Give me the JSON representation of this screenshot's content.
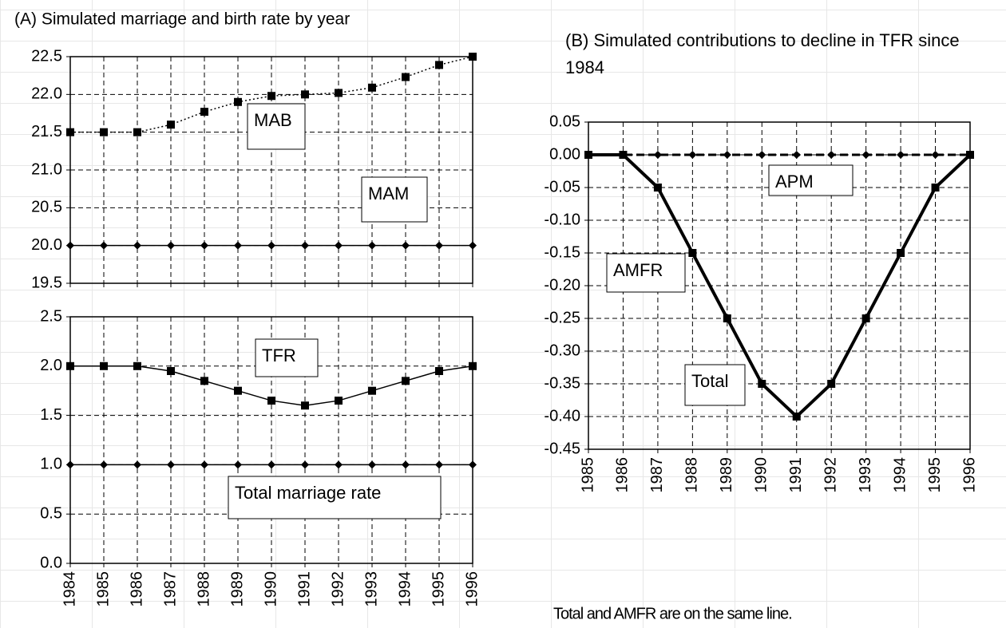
{
  "chart_data": [
    {
      "type": "line",
      "title": "(A) Simulated marriage and birth rate by year",
      "categories": [
        null,
        null,
        null,
        null,
        null,
        null,
        null,
        null,
        null,
        null,
        null,
        null,
        null
      ],
      "series": [
        {
          "name": "MAB",
          "color": "#000000",
          "line_style": "dotted",
          "marker": "square",
          "values": [
            21.5,
            21.5,
            21.5,
            21.6,
            21.77,
            21.9,
            21.98,
            22.0,
            22.02,
            22.09,
            22.23,
            22.39,
            22.5
          ]
        },
        {
          "name": "MAM",
          "color": "#000000",
          "line_style": "solid",
          "marker": "diamond",
          "values": [
            20,
            20,
            20,
            20,
            20,
            20,
            20,
            20,
            20,
            20,
            20,
            20,
            20
          ]
        }
      ],
      "ylim": [
        19.5,
        22.5
      ],
      "yticks": [
        19.5,
        {
          "value": 20,
          "label": "20.0"
        },
        20.5,
        {
          "value": 21,
          "label": "21.0"
        },
        21.5,
        {
          "value": 22,
          "label": "22.0"
        },
        22.5
      ],
      "grid": true
    },
    {
      "type": "line",
      "categories": [
        "1984",
        "1985",
        "1986",
        "1987",
        "1988",
        "1989",
        "1990",
        "1991",
        "1992",
        "1993",
        "1994",
        "1995",
        "1996"
      ],
      "series": [
        {
          "name": "TFR",
          "color": "#000000",
          "line_style": "solid",
          "marker": "square",
          "values": [
            2.0,
            2.0,
            2.0,
            1.95,
            1.85,
            1.75,
            1.65,
            1.6,
            1.65,
            1.75,
            1.85,
            1.95,
            2.0
          ]
        },
        {
          "name": "Total marriage rate",
          "color": "#000000",
          "line_style": "solid",
          "marker": "diamond",
          "values": [
            1,
            1,
            1,
            1,
            1,
            1,
            1,
            1,
            1,
            1,
            1,
            1,
            1
          ]
        }
      ],
      "ylim": [
        0,
        2.5
      ],
      "yticks": [
        {
          "value": 0,
          "label": "0.0"
        },
        0.5,
        {
          "value": 1,
          "label": "1.0"
        },
        1.5,
        {
          "value": 2,
          "label": "2.0"
        },
        2.5
      ],
      "grid": true
    },
    {
      "type": "line",
      "title": "(B) Simulated contributions to decline in TFR since 1984",
      "categories": [
        "1985",
        "1986",
        "1987",
        "1988",
        "1989",
        "1990",
        "1991",
        "1992",
        "1993",
        "1994",
        "1995",
        "1996"
      ],
      "series": [
        {
          "name": "APM",
          "color": "#000000",
          "line_style": "dashed",
          "marker": "diamond",
          "values": [
            0,
            0,
            0,
            0,
            0,
            0,
            0,
            0,
            0,
            0,
            0,
            0
          ]
        },
        {
          "name": "AMFR",
          "color": "#000000",
          "line_style": "thick",
          "marker": "square",
          "values": [
            0,
            0,
            -0.05,
            -0.15,
            -0.25,
            -0.35,
            -0.4,
            -0.35,
            -0.25,
            -0.15,
            -0.05,
            0
          ]
        },
        {
          "name": "Total",
          "color": "#000000",
          "line_style": "dashed",
          "marker": "none",
          "values": [
            0,
            0,
            -0.05,
            -0.15,
            -0.25,
            -0.35,
            -0.4,
            -0.35,
            -0.25,
            -0.15,
            -0.05,
            0
          ]
        }
      ],
      "ylim": [
        -0.45,
        0.05
      ],
      "yticks": [
        {
          "value": -0.45,
          "label": "-0.45"
        },
        {
          "value": -0.4,
          "label": "-0.40"
        },
        {
          "value": -0.35,
          "label": "-0.35"
        },
        {
          "value": -0.3,
          "label": "-0.30"
        },
        {
          "value": -0.25,
          "label": "-0.25"
        },
        {
          "value": -0.2,
          "label": "-0.20"
        },
        {
          "value": -0.15,
          "label": "-0.15"
        },
        {
          "value": -0.1,
          "label": "-0.10"
        },
        {
          "value": -0.05,
          "label": "-0.05"
        },
        {
          "value": 0,
          "label": "0.00"
        },
        0.05
      ],
      "grid": true,
      "annotation": "Total and AMFR are on the same line."
    }
  ]
}
